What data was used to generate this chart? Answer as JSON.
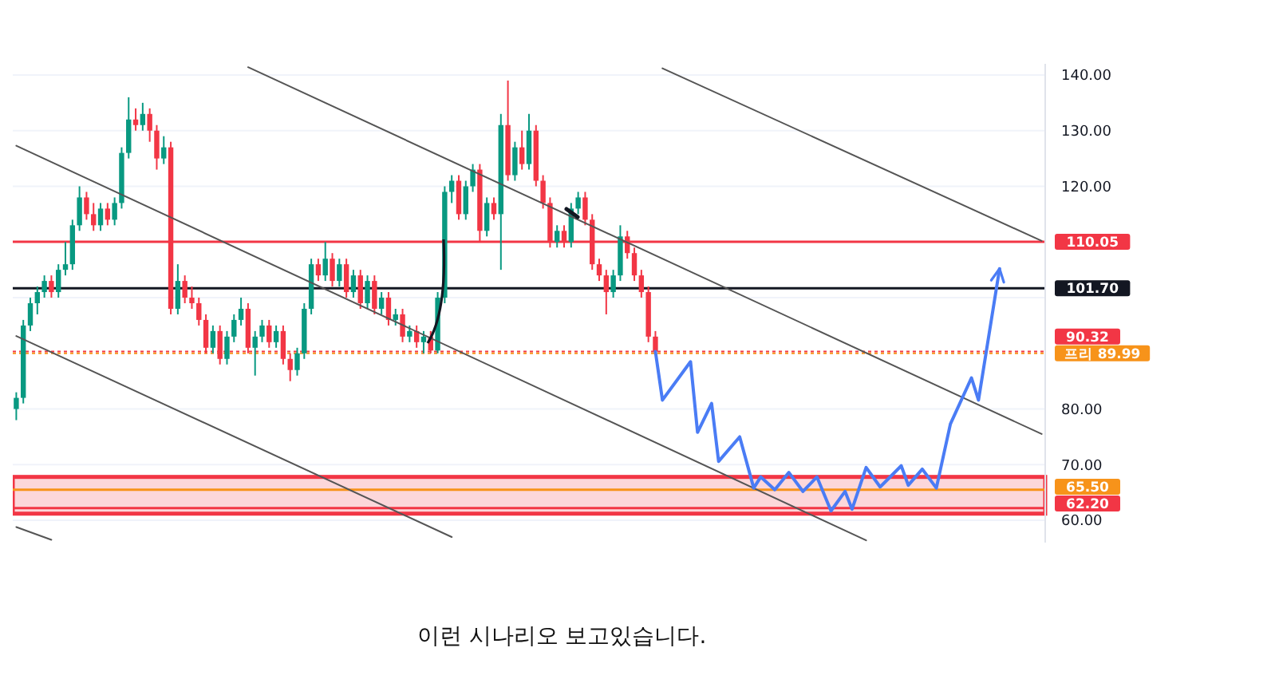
{
  "chart_data": {
    "type": "candlestick",
    "categories": [
      null,
      null,
      null,
      null,
      null,
      null,
      null,
      null,
      null,
      null,
      null,
      null,
      null,
      null,
      null,
      null,
      null,
      null,
      null,
      null,
      null,
      null,
      null,
      null,
      null,
      null,
      null,
      null,
      null,
      null,
      null,
      null,
      null,
      null,
      null,
      null,
      null,
      null,
      null,
      null,
      null,
      null,
      null,
      null,
      null,
      null,
      null,
      null,
      null,
      null,
      null,
      null,
      null,
      null,
      null,
      null,
      null,
      null,
      null,
      null,
      null,
      null,
      null,
      null,
      null,
      null,
      null,
      null,
      null,
      null,
      null,
      null,
      null,
      null,
      null,
      null,
      null,
      null,
      null,
      null,
      null,
      null,
      null,
      null,
      null,
      null,
      null,
      null,
      null,
      null,
      null,
      null,
      null,
      null,
      null,
      null,
      null,
      null,
      null,
      null,
      null,
      null,
      null,
      null,
      null,
      null,
      null,
      null,
      null,
      null,
      null,
      null,
      null,
      null,
      null,
      null,
      null,
      null,
      null,
      null,
      null,
      null,
      null,
      null,
      null,
      null,
      null,
      null,
      null,
      null,
      null,
      null,
      null,
      null,
      null,
      null,
      null,
      null,
      null,
      null,
      null,
      null,
      null,
      null,
      null,
      null,
      null
    ],
    "ohlc": [
      [
        80,
        83,
        78,
        82
      ],
      [
        82,
        96,
        81,
        95
      ],
      [
        95,
        100,
        94,
        99
      ],
      [
        99,
        102,
        97,
        101
      ],
      [
        101,
        104,
        100,
        103
      ],
      [
        103,
        104,
        100,
        101
      ],
      [
        101,
        106,
        100,
        105
      ],
      [
        105,
        110,
        104,
        106
      ],
      [
        106,
        114,
        105,
        113
      ],
      [
        113,
        120,
        112,
        118
      ],
      [
        118,
        119,
        114,
        115
      ],
      [
        115,
        117,
        112,
        113
      ],
      [
        113,
        117,
        112,
        116
      ],
      [
        116,
        117,
        113,
        114
      ],
      [
        114,
        118,
        113,
        117
      ],
      [
        117,
        127,
        116,
        126
      ],
      [
        126,
        136,
        125,
        132
      ],
      [
        132,
        134,
        130,
        131
      ],
      [
        131,
        135,
        130,
        133
      ],
      [
        133,
        134,
        128,
        130
      ],
      [
        130,
        131,
        123,
        125
      ],
      [
        125,
        129,
        124,
        127
      ],
      [
        127,
        128,
        97,
        98
      ],
      [
        98,
        106,
        97,
        103
      ],
      [
        103,
        104,
        99,
        100
      ],
      [
        100,
        102,
        98,
        99
      ],
      [
        99,
        100,
        95,
        96
      ],
      [
        96,
        97,
        90,
        91
      ],
      [
        91,
        95,
        90,
        94
      ],
      [
        94,
        95,
        88,
        89
      ],
      [
        89,
        94,
        88,
        93
      ],
      [
        93,
        97,
        92,
        96
      ],
      [
        96,
        100,
        95,
        98
      ],
      [
        98,
        99,
        90,
        91
      ],
      [
        91,
        94,
        86,
        93
      ],
      [
        93,
        96,
        92,
        95
      ],
      [
        95,
        96,
        91,
        92
      ],
      [
        92,
        95,
        91,
        94
      ],
      [
        94,
        95,
        88,
        89
      ],
      [
        89,
        90,
        85,
        87
      ],
      [
        87,
        91,
        86,
        90
      ],
      [
        90,
        99,
        89,
        98
      ],
      [
        98,
        107,
        97,
        106
      ],
      [
        106,
        107,
        103,
        104
      ],
      [
        104,
        110,
        103,
        107
      ],
      [
        107,
        108,
        102,
        103
      ],
      [
        103,
        107,
        102,
        106
      ],
      [
        106,
        107,
        100,
        101
      ],
      [
        101,
        105,
        100,
        104
      ],
      [
        104,
        105,
        98,
        99
      ],
      [
        99,
        104,
        98,
        103
      ],
      [
        103,
        104,
        97,
        98
      ],
      [
        98,
        101,
        97,
        100
      ],
      [
        100,
        101,
        95,
        96
      ],
      [
        96,
        98,
        95,
        97
      ],
      [
        97,
        98,
        92,
        93
      ],
      [
        93,
        95,
        92,
        94
      ],
      [
        94,
        95,
        91,
        92
      ],
      [
        92,
        94,
        90,
        93
      ],
      [
        93,
        94,
        90,
        90.5
      ],
      [
        90.5,
        101,
        90,
        100
      ],
      [
        100,
        120,
        99,
        119
      ],
      [
        119,
        122,
        117,
        121
      ],
      [
        121,
        122,
        114,
        115
      ],
      [
        115,
        121,
        114,
        120
      ],
      [
        120,
        124,
        119,
        123
      ],
      [
        123,
        124,
        110,
        112
      ],
      [
        112,
        118,
        111,
        117
      ],
      [
        117,
        118,
        114,
        115
      ],
      [
        115,
        133,
        105,
        131
      ],
      [
        131,
        139,
        121,
        122
      ],
      [
        122,
        128,
        121,
        127
      ],
      [
        127,
        130,
        123,
        124
      ],
      [
        124,
        133,
        123,
        130
      ],
      [
        130,
        131,
        120,
        121
      ],
      [
        121,
        122,
        116,
        117
      ],
      [
        117,
        118,
        109,
        110
      ],
      [
        110,
        113,
        109,
        112
      ],
      [
        112,
        113,
        109,
        110
      ],
      [
        110,
        117,
        109,
        116
      ],
      [
        116,
        119,
        115,
        118
      ],
      [
        118,
        119,
        113,
        114
      ],
      [
        114,
        115,
        105,
        106
      ],
      [
        106,
        107,
        103,
        104
      ],
      [
        104,
        105,
        97,
        101
      ],
      [
        101,
        105,
        100,
        104
      ],
      [
        104,
        113,
        103,
        111
      ],
      [
        111,
        112,
        107,
        108
      ],
      [
        108,
        109,
        103,
        104
      ],
      [
        104,
        105,
        100,
        101
      ],
      [
        101,
        102,
        92,
        93
      ],
      [
        93,
        94,
        90,
        90.32
      ],
      null,
      null,
      null,
      null,
      null,
      null,
      null,
      null,
      null,
      null,
      null,
      null,
      null,
      null,
      null,
      null,
      null,
      null,
      null,
      null,
      null,
      null,
      null,
      null,
      null,
      null,
      null,
      null,
      null,
      null,
      null,
      null,
      null,
      null,
      null,
      null,
      null,
      null,
      null,
      null,
      null,
      null,
      null,
      null,
      null,
      null,
      null,
      null,
      null,
      null,
      null,
      null,
      null,
      null,
      null
    ],
    "series": [
      {
        "type": "line",
        "color": "#555555",
        "values": [
          null,
          null,
          null,
          null,
          null,
          null,
          null,
          null,
          null,
          null,
          null,
          null,
          null,
          null,
          null,
          null,
          null,
          null,
          null,
          null,
          null,
          null,
          null,
          null,
          null,
          null,
          null,
          null,
          null,
          null,
          null,
          null,
          null,
          141.4,
          null,
          null,
          null,
          null,
          null,
          null,
          null,
          null,
          null,
          null,
          null,
          null,
          null,
          null,
          null,
          null,
          null,
          null,
          null,
          null,
          null,
          null,
          null,
          null,
          null,
          null,
          null,
          null,
          null,
          null,
          null,
          null,
          null,
          null,
          null,
          null,
          null,
          null,
          null,
          null,
          null,
          null,
          null,
          null,
          null,
          null,
          null,
          null,
          null,
          null,
          null,
          null,
          null,
          null,
          null,
          null,
          null,
          null,
          null,
          null,
          null,
          null,
          null,
          null,
          null,
          null,
          null,
          null,
          null,
          null,
          null,
          null,
          null,
          null,
          null,
          null,
          null,
          null,
          null,
          null,
          null,
          null,
          null,
          null,
          null,
          null,
          null,
          null,
          null,
          null,
          null,
          null,
          null,
          null,
          null,
          null,
          null,
          null,
          null,
          null,
          null,
          null,
          null,
          null,
          null,
          null,
          null,
          null,
          null,
          null,
          null,
          null,
          75.5
        ]
      },
      {
        "type": "line",
        "color": "#555555",
        "values": [
          127.3,
          null,
          null,
          null,
          null,
          null,
          null,
          null,
          null,
          null,
          null,
          null,
          null,
          null,
          null,
          null,
          null,
          null,
          null,
          null,
          null,
          null,
          null,
          null,
          null,
          null,
          null,
          null,
          null,
          null,
          null,
          null,
          null,
          null,
          null,
          null,
          null,
          null,
          null,
          null,
          null,
          null,
          null,
          null,
          null,
          null,
          null,
          null,
          null,
          null,
          null,
          null,
          null,
          null,
          null,
          null,
          null,
          null,
          null,
          null,
          null,
          null,
          null,
          null,
          null,
          null,
          null,
          null,
          null,
          null,
          null,
          null,
          null,
          null,
          null,
          null,
          null,
          null,
          null,
          null,
          null,
          null,
          null,
          null,
          null,
          null,
          null,
          null,
          null,
          null,
          null,
          null,
          null,
          null,
          null,
          null,
          null,
          null,
          null,
          null,
          null,
          null,
          null,
          null,
          null,
          null,
          null,
          null,
          null,
          null,
          null,
          null,
          null,
          null,
          null,
          null,
          null,
          null,
          null,
          null,
          null,
          56.4,
          null,
          null,
          null,
          null,
          null,
          null,
          null,
          null,
          null,
          null,
          null,
          null,
          null,
          null,
          null,
          null,
          null,
          null,
          null,
          null,
          null,
          null,
          null,
          null,
          null
        ]
      },
      {
        "type": "line",
        "color": "#555555",
        "values": [
          93.1,
          null,
          null,
          null,
          null,
          null,
          null,
          null,
          null,
          null,
          null,
          null,
          null,
          null,
          null,
          null,
          null,
          null,
          null,
          null,
          null,
          null,
          null,
          null,
          null,
          null,
          null,
          null,
          null,
          null,
          null,
          null,
          null,
          null,
          null,
          null,
          null,
          null,
          null,
          null,
          null,
          null,
          null,
          null,
          null,
          null,
          null,
          null,
          null,
          null,
          null,
          null,
          null,
          null,
          null,
          null,
          null,
          null,
          null,
          null,
          null,
          null,
          57.0,
          null,
          null,
          null,
          null,
          null,
          null,
          null,
          null,
          null,
          null,
          null,
          null,
          null,
          null,
          null,
          null,
          null,
          null,
          null,
          null,
          null,
          null,
          null,
          null,
          null,
          null,
          null,
          null,
          null,
          null,
          null,
          null,
          null,
          null,
          null,
          null,
          null,
          null,
          null,
          null,
          null,
          null,
          null,
          null,
          null,
          null,
          null,
          null,
          null,
          null,
          null,
          null,
          null,
          null,
          null,
          null,
          null,
          null,
          null,
          null,
          null,
          null,
          null,
          null,
          null,
          null,
          null,
          null,
          null,
          null,
          null,
          null,
          null,
          null,
          null,
          null,
          null,
          null,
          null,
          null,
          null,
          null,
          null,
          null
        ]
      },
      {
        "type": "line",
        "color": "#555555",
        "values": [
          58.8,
          null,
          null,
          null,
          null,
          56.5,
          null,
          null,
          null,
          null,
          null,
          null,
          null,
          null,
          null,
          null,
          null,
          null,
          null,
          null,
          null,
          null,
          null,
          null,
          null,
          null,
          null,
          null,
          null,
          null,
          null,
          null,
          null,
          null,
          null,
          null,
          null,
          null,
          null,
          null,
          null,
          null,
          null,
          null,
          null,
          null,
          null,
          null,
          null,
          null,
          null,
          null,
          null,
          null,
          null,
          null,
          null,
          null,
          null,
          null,
          null,
          null,
          null,
          null,
          null,
          null,
          null,
          null,
          null,
          null,
          null,
          null,
          null,
          null,
          null,
          null,
          null,
          null,
          null,
          null,
          null,
          null,
          null,
          null,
          null,
          null,
          null,
          null,
          null,
          null,
          null,
          null,
          null,
          null,
          null,
          null,
          null,
          null,
          null,
          null,
          null,
          null,
          null,
          null,
          null,
          null,
          null,
          null,
          null,
          null,
          null,
          null,
          null,
          null,
          null,
          null,
          null,
          null,
          null,
          null,
          null,
          null,
          null,
          null,
          null,
          null,
          null,
          null,
          null,
          null,
          null,
          null,
          null,
          null,
          null,
          null,
          null,
          null,
          null,
          null,
          null,
          null,
          null,
          null,
          null,
          null,
          null
        ]
      },
      {
        "type": "line",
        "color": "#555555",
        "values": [
          null,
          null,
          null,
          null,
          null,
          null,
          null,
          null,
          null,
          null,
          null,
          null,
          null,
          null,
          null,
          null,
          null,
          null,
          null,
          null,
          null,
          null,
          null,
          null,
          null,
          null,
          null,
          null,
          null,
          null,
          null,
          null,
          null,
          null,
          null,
          null,
          null,
          null,
          null,
          null,
          null,
          null,
          null,
          null,
          null,
          null,
          null,
          null,
          null,
          null,
          null,
          null,
          null,
          null,
          null,
          null,
          null,
          null,
          null,
          null,
          null,
          null,
          null,
          null,
          null,
          null,
          null,
          null,
          null,
          null,
          null,
          null,
          null,
          null,
          null,
          null,
          null,
          null,
          null,
          null,
          null,
          null,
          null,
          null,
          null,
          null,
          null,
          null,
          null,
          null,
          null,
          null,
          141.2,
          null,
          null,
          null,
          null,
          null,
          null,
          null,
          null,
          null,
          null,
          null,
          null,
          null,
          null,
          null,
          null,
          null,
          null,
          null,
          null,
          null,
          null,
          null,
          null,
          null,
          null,
          null,
          null,
          null,
          null,
          null,
          null,
          null,
          null,
          null,
          null,
          null,
          null,
          null,
          null,
          null,
          null,
          null,
          null,
          null,
          null,
          null,
          null,
          null,
          null,
          null,
          null,
          null,
          110.2
        ]
      },
      {
        "type": "line",
        "color": "#4a7cf5",
        "values": [
          null,
          null,
          null,
          null,
          null,
          null,
          null,
          null,
          null,
          null,
          null,
          null,
          null,
          null,
          null,
          null,
          null,
          null,
          null,
          null,
          null,
          null,
          null,
          null,
          null,
          null,
          null,
          null,
          null,
          null,
          null,
          null,
          null,
          null,
          null,
          null,
          null,
          null,
          null,
          null,
          null,
          null,
          null,
          null,
          null,
          null,
          null,
          null,
          null,
          null,
          null,
          null,
          null,
          null,
          null,
          null,
          null,
          null,
          null,
          null,
          null,
          null,
          null,
          null,
          null,
          null,
          null,
          null,
          null,
          null,
          null,
          null,
          null,
          null,
          null,
          null,
          null,
          null,
          null,
          null,
          null,
          null,
          null,
          null,
          null,
          null,
          null,
          null,
          null,
          null,
          null,
          90.32,
          81.6,
          null,
          null,
          null,
          88.5,
          75.8,
          null,
          81.0,
          70.6,
          null,
          null,
          75.0,
          null,
          65.8,
          67.8,
          null,
          65.5,
          null,
          68.6,
          null,
          65.2,
          null,
          67.8,
          null,
          61.7,
          null,
          65.2,
          62.0,
          null,
          69.5,
          null,
          66.0,
          null,
          null,
          69.8,
          66.3,
          null,
          69.2,
          null,
          65.8,
          null,
          77.3,
          null,
          null,
          85.6,
          81.6,
          null,
          null,
          105.2,
          null,
          null,
          null,
          null,
          null,
          null
        ]
      }
    ],
    "ylim": [
      56,
      142
    ],
    "yticks": [
      {
        "value": 60,
        "label": "60.00"
      },
      {
        "value": 70,
        "label": "70.00"
      },
      {
        "value": 80,
        "label": "80.00"
      },
      {
        "value": 100,
        "label": null
      },
      {
        "value": 120,
        "label": "120.00"
      },
      {
        "value": 130,
        "label": "130.00"
      },
      {
        "value": 140,
        "label": "140.00"
      }
    ],
    "tick_labels": "y",
    "grid": "y",
    "ref_lines": [
      {
        "axis": "y",
        "value": 110.05,
        "label": "110.05",
        "color": "#f23645",
        "line_style": "solid"
      },
      {
        "axis": "y",
        "value": 101.7,
        "label": "101.70",
        "color": "#131722",
        "line_style": "solid"
      },
      {
        "axis": "y",
        "value": 90.32,
        "label": "90.32",
        "color": "#f23645",
        "line_style": "dotted"
      },
      {
        "axis": "y",
        "value": 89.99,
        "label": "프리 89.99",
        "color": "#f7931a",
        "line_style": "dotted"
      },
      {
        "axis": "y",
        "value": 65.5,
        "label": "65.50",
        "color": "#f7931a",
        "line_style": "solid"
      },
      {
        "axis": "y",
        "value": 62.2,
        "label": "62.20",
        "color": "#f23645",
        "line_style": "solid"
      }
    ],
    "bands": [
      {
        "axis": "y",
        "from": 61.2,
        "to": 67.8,
        "color": "#f23645"
      }
    ],
    "annotations": [
      "이런 시나리오 보고있습니다."
    ]
  }
}
